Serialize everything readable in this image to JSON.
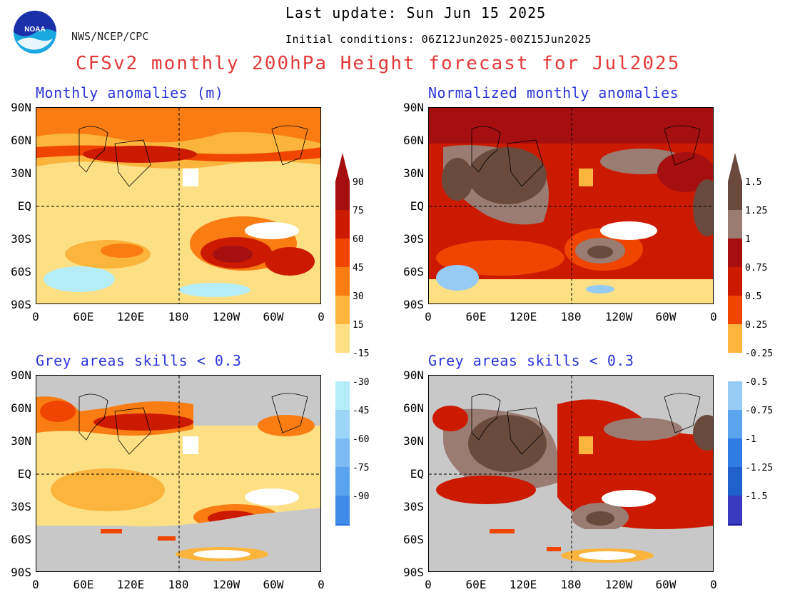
{
  "header": {
    "last_update": "Last update: Sun Jun 15 2025",
    "initial_conditions": "Initial conditions: 06Z12Jun2025-00Z15Jun2025",
    "agency": "NWS/NCEP/CPC",
    "logo_text": "NOAA",
    "title": "CFSv2 monthly 200hPa Height forecast for Jul2025"
  },
  "colors": {
    "title": "#e23a3a",
    "panel_title": "#2b35d8",
    "skill_mask": "#c8c8c8"
  },
  "panels": [
    {
      "id": "tl",
      "title": "Monthly anomalies (m)"
    },
    {
      "id": "tr",
      "title": "Normalized monthly anomalies"
    },
    {
      "id": "bl",
      "title": "Grey areas skills < 0.3"
    },
    {
      "id": "br",
      "title": "Grey areas skills < 0.3"
    }
  ],
  "axes": {
    "lat_labels": [
      "90N",
      "60N",
      "30N",
      "EQ",
      "30S",
      "60S",
      "90S"
    ],
    "lon_labels": [
      "0",
      "60E",
      "120E",
      "180",
      "120W",
      "60W",
      "0"
    ]
  },
  "colorbar_left": {
    "positive_labels": [
      "90",
      "75",
      "60",
      "45",
      "30",
      "15"
    ],
    "negative_labels": [
      "-15",
      "-30",
      "-45",
      "-60",
      "-75",
      "-90"
    ],
    "positive_colors": [
      "#a50f0f",
      "#cc1a00",
      "#ef4500",
      "#fa7d13",
      "#fbb43c",
      "#fde084"
    ],
    "negative_colors": [
      "#b4ecf8",
      "#9bd6f6",
      "#7cbcf2",
      "#5aa3ee",
      "#3f8ce8",
      "#2a74dc"
    ]
  },
  "colorbar_right": {
    "positive_labels": [
      "1.5",
      "1.25",
      "1",
      "0.75",
      "0.5",
      "0.25"
    ],
    "negative_labels": [
      "-0.25",
      "-0.5",
      "-0.75",
      "-1",
      "-1.25",
      "-1.5"
    ],
    "positive_colors": [
      "#6b4a3e",
      "#9a7c72",
      "#a50f0f",
      "#cc1a00",
      "#ef4500",
      "#fbb43c"
    ],
    "negative_colors": [
      "#96cbf5",
      "#5ba4ee",
      "#2f7ce4",
      "#2060cc",
      "#3a3ac0",
      "#1c1ca0"
    ]
  }
}
